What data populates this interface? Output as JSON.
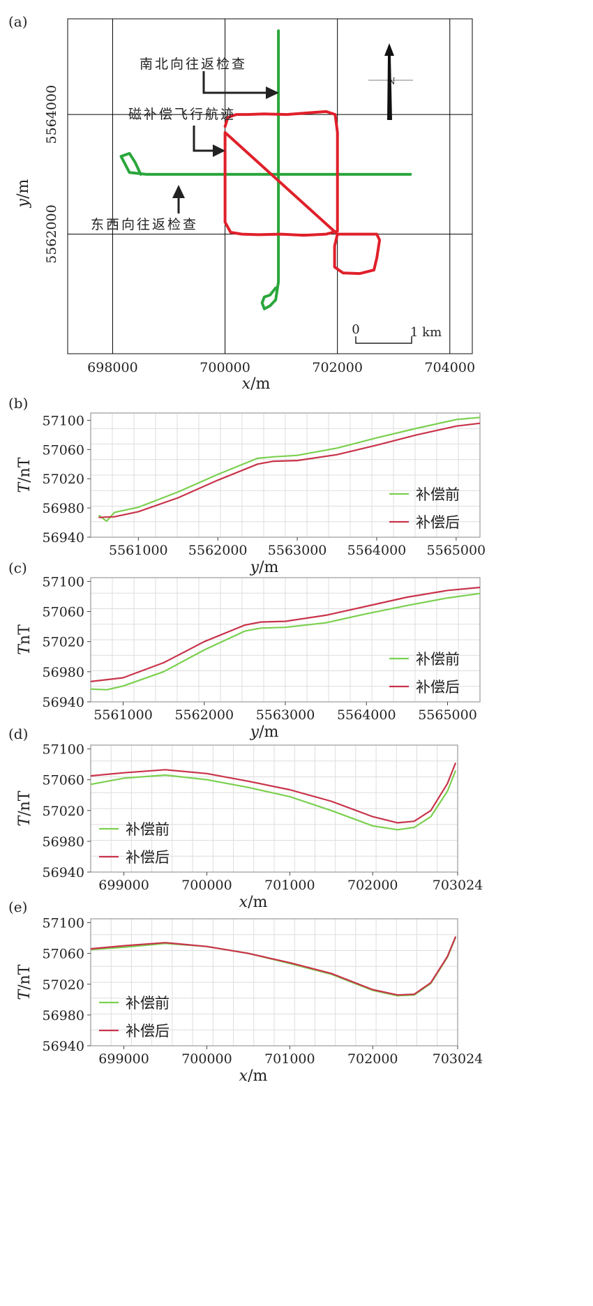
{
  "chart_data": [
    {
      "panel": "(a)",
      "type": "line",
      "xlabel_var": "x",
      "xlabel_unit": "/m",
      "ylabel_var": "y",
      "ylabel_unit": "/m",
      "xlim": [
        697200,
        704400
      ],
      "ylim": [
        5560000,
        5565600
      ],
      "x_ticks": [
        "698000",
        "700000",
        "702000",
        "704000"
      ],
      "y_ticks": [
        "5562000",
        "5564000"
      ],
      "x_gridlines": [
        698000,
        700000,
        702000,
        704000
      ],
      "y_gridlines": [
        5562000,
        5564000
      ],
      "colors": {
        "ns_line": "#2aa63c",
        "ew_line": "#2aa63c",
        "comp_track": "#e0202a",
        "grid": "#000000"
      },
      "series": [
        {
          "name": "南北向往返检查",
          "color": "#2aa63c",
          "x": [
            700950,
            700950,
            700950,
            700950,
            700950,
            700950,
            700900,
            700800,
            700700,
            700660,
            700700,
            700800,
            700900
          ],
          "y": [
            5565400,
            5564600,
            5564000,
            5563000,
            5562000,
            5561200,
            5560900,
            5560800,
            5560750,
            5560850,
            5560950,
            5560980,
            5561100
          ]
        },
        {
          "name": "东西向往返检查",
          "color": "#2aa63c",
          "x": [
            703300,
            702500,
            701500,
            700500,
            699500,
            698600,
            698300,
            698150,
            698300,
            698400,
            698500
          ],
          "y": [
            5563000,
            5563000,
            5563000,
            5563000,
            5563000,
            5563000,
            5563030,
            5563300,
            5563350,
            5563200,
            5563000
          ]
        },
        {
          "name": "磁补偿飞行航迹",
          "color": "#e0202a",
          "x": [
            700000,
            700050,
            700200,
            700400,
            700700,
            701100,
            701500,
            701800,
            701960,
            702000,
            702000,
            702000,
            702000,
            701800,
            701400,
            701000,
            700600,
            700300,
            700100,
            700000,
            700000,
            700000,
            702000,
            702700,
            702750,
            702700,
            702650,
            702400,
            702100,
            701950,
            701950,
            702000
          ],
          "y": [
            5563800,
            5563950,
            5564000,
            5564000,
            5564010,
            5564000,
            5564030,
            5564050,
            5564000,
            5563700,
            5563000,
            5562400,
            5562050,
            5562000,
            5561980,
            5562000,
            5561990,
            5562000,
            5562030,
            5562200,
            5563000,
            5563700,
            5562000,
            5562000,
            5561900,
            5561600,
            5561400,
            5561340,
            5561350,
            5561450,
            5561800,
            5562000
          ]
        }
      ],
      "annotations": [
        {
          "text": "南北向往返检查",
          "x": 701300,
          "y": 5565000
        },
        {
          "text": "磁补偿飞行航迹",
          "x": 699300,
          "y": 5564350
        },
        {
          "text": "东西向往返检查",
          "x": 697300,
          "y": 5562300
        }
      ],
      "scalebar": {
        "left_label": "0",
        "right_label": "1 km",
        "length_km": 1
      },
      "north_arrow": {
        "label": "N"
      }
    },
    {
      "panel": "(b)",
      "type": "line",
      "xlabel_var": "y",
      "xlabel_unit": "/m",
      "ylabel_var": "T",
      "ylabel_unit": "/nT",
      "xlim": [
        5560400,
        5565300
      ],
      "ylim": [
        56940,
        57110
      ],
      "x_ticks": [
        "5561000",
        "5562000",
        "5563000",
        "5564000",
        "5565000"
      ],
      "x_tick_values": [
        5561000,
        5562000,
        5563000,
        5564000,
        5565000
      ],
      "y_ticks": [
        57100,
        57060,
        57020,
        56980,
        56940
      ],
      "legend_position": "bottom-right",
      "series": [
        {
          "name": "补偿前",
          "color": "#7bd04f",
          "x": [
            5560500,
            5560600,
            5560700,
            5561000,
            5561500,
            5562000,
            5562500,
            5562700,
            5563000,
            5563500,
            5564000,
            5564500,
            5565000,
            5565300
          ],
          "y": [
            56970,
            56962,
            56974,
            56981,
            57002,
            57026,
            57048,
            57050,
            57052,
            57062,
            57076,
            57089,
            57101,
            57104
          ]
        },
        {
          "name": "补偿后",
          "color": "#c8334a",
          "x": [
            5560500,
            5560700,
            5561000,
            5561500,
            5562000,
            5562500,
            5562700,
            5563000,
            5563500,
            5564000,
            5564500,
            5565000,
            5565300
          ],
          "y": [
            56967,
            56968,
            56975,
            56994,
            57018,
            57040,
            57044,
            57045,
            57053,
            57066,
            57080,
            57092,
            57096
          ]
        }
      ]
    },
    {
      "panel": "(c)",
      "type": "line",
      "xlabel_var": "y",
      "xlabel_unit": "/m",
      "ylabel_var": "T",
      "ylabel_unit": "nT",
      "xlim": [
        5560600,
        5565400
      ],
      "ylim": [
        56940,
        57105
      ],
      "x_ticks": [
        "5561000",
        "5562000",
        "5563000",
        "5564000",
        "5565000"
      ],
      "x_tick_values": [
        5561000,
        5562000,
        5563000,
        5564000,
        5565000
      ],
      "y_ticks": [
        57100,
        57060,
        57020,
        56980,
        56940
      ],
      "legend_position": "bottom-right",
      "series": [
        {
          "name": "补偿前",
          "color": "#7bd04f",
          "x": [
            5560600,
            5560800,
            5561000,
            5561500,
            5562000,
            5562500,
            5562700,
            5563000,
            5563500,
            5564000,
            5564500,
            5565000,
            5565400
          ],
          "y": [
            56957,
            56956,
            56961,
            56980,
            57009,
            57034,
            57038,
            57039,
            57045,
            57057,
            57068,
            57078,
            57084
          ]
        },
        {
          "name": "补偿后",
          "color": "#c8334a",
          "x": [
            5560600,
            5561000,
            5561500,
            5562000,
            5562500,
            5562700,
            5563000,
            5563500,
            5564000,
            5564500,
            5565000,
            5565400
          ],
          "y": [
            56967,
            56972,
            56992,
            57020,
            57042,
            57046,
            57047,
            57055,
            57067,
            57079,
            57088,
            57092
          ]
        }
      ]
    },
    {
      "panel": "(d)",
      "type": "line",
      "xlabel_var": "x",
      "xlabel_unit": "/m",
      "ylabel_var": "T",
      "ylabel_unit": "/nT",
      "xlim": [
        698600,
        703024
      ],
      "ylim": [
        56940,
        57105
      ],
      "x_ticks": [
        "699000",
        "700000",
        "701000",
        "702000",
        "703024"
      ],
      "x_tick_values": [
        699000,
        700000,
        701000,
        702000,
        703024
      ],
      "y_ticks": [
        57100,
        57060,
        57020,
        56980,
        56940
      ],
      "legend_position": "bottom-left",
      "series": [
        {
          "name": "补偿前",
          "color": "#7bd04f",
          "x": [
            698600,
            699000,
            699500,
            700000,
            700500,
            701000,
            701500,
            702000,
            702300,
            702500,
            702700,
            702900,
            703000
          ],
          "y": [
            57054,
            57062,
            57066,
            57060,
            57050,
            57038,
            57020,
            57000,
            56995,
            56998,
            57012,
            57045,
            57072
          ]
        },
        {
          "name": "补偿后",
          "color": "#c8334a",
          "x": [
            698600,
            699000,
            699500,
            700000,
            700500,
            701000,
            701500,
            702000,
            702300,
            702500,
            702700,
            702900,
            703000
          ],
          "y": [
            57065,
            57069,
            57073,
            57068,
            57058,
            57047,
            57032,
            57012,
            57004,
            57006,
            57020,
            57055,
            57082
          ]
        }
      ]
    },
    {
      "panel": "(e)",
      "type": "line",
      "xlabel_var": "x",
      "xlabel_unit": "/m",
      "ylabel_var": "T",
      "ylabel_unit": "/nT",
      "xlim": [
        698600,
        703024
      ],
      "ylim": [
        56940,
        57105
      ],
      "x_ticks": [
        "699000",
        "700000",
        "701000",
        "702000",
        "703024"
      ],
      "x_tick_values": [
        699000,
        700000,
        701000,
        702000,
        703024
      ],
      "y_ticks": [
        57100,
        57060,
        57020,
        56980,
        56940
      ],
      "legend_position": "bottom-left",
      "series": [
        {
          "name": "补偿前",
          "color": "#7bd04f",
          "x": [
            698600,
            699000,
            699500,
            700000,
            700500,
            701000,
            701500,
            702000,
            702300,
            702500,
            702700,
            702900,
            703000
          ],
          "y": [
            57065,
            57068,
            57073,
            57069,
            57060,
            57047,
            57033,
            57012,
            57005,
            57006,
            57021,
            57055,
            57081
          ]
        },
        {
          "name": "补偿后",
          "color": "#c8334a",
          "x": [
            698600,
            699000,
            699500,
            700000,
            700500,
            701000,
            701500,
            702000,
            702300,
            702500,
            702700,
            702900,
            703000
          ],
          "y": [
            57066,
            57070,
            57074,
            57069,
            57060,
            57048,
            57034,
            57013,
            57006,
            57007,
            57022,
            57056,
            57082
          ]
        }
      ]
    }
  ]
}
